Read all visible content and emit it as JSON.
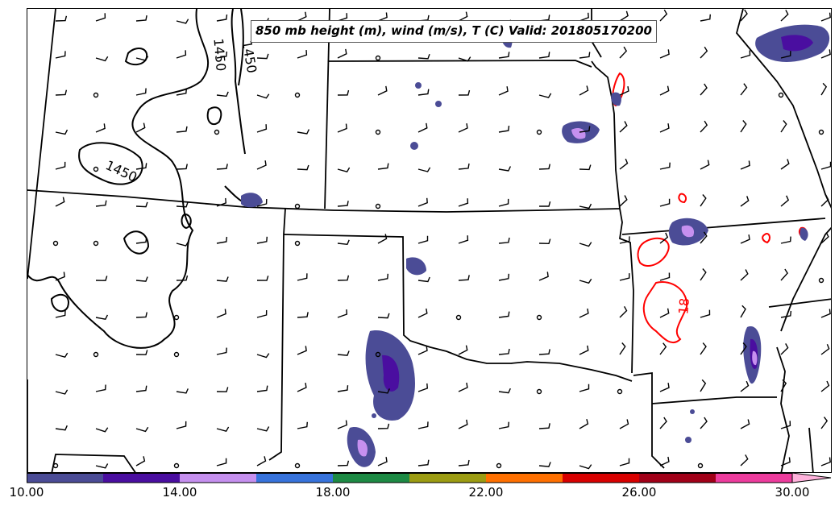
{
  "title": "850 mb height (m), wind (m/s), T (C) Valid: 201805170200",
  "contour_labels": {
    "height_a": "1450",
    "height_b": "1450",
    "height_c": "1450",
    "temp": "18"
  },
  "colorbar": {
    "min": 10,
    "max": 30,
    "extend": "max",
    "colors": [
      "#4b4c96",
      "#4a0ea0",
      "#c690ef",
      "#3773dc",
      "#1d8a44",
      "#9c9c12",
      "#ff7000",
      "#d80000",
      "#a10018",
      "#ed3c9d"
    ],
    "extend_color": "#ffb2dc",
    "ticks": [
      {
        "value": 10,
        "label": "10.00"
      },
      {
        "value": 14,
        "label": "14.00"
      },
      {
        "value": 18,
        "label": "18.00"
      },
      {
        "value": 22,
        "label": "22.00"
      },
      {
        "value": 26,
        "label": "26.00"
      },
      {
        "value": 30,
        "label": "30.00"
      }
    ]
  },
  "map": {
    "height_contour_color": "#000000",
    "temperature_contour_color": "#ff0000",
    "border_color": "#000000"
  }
}
